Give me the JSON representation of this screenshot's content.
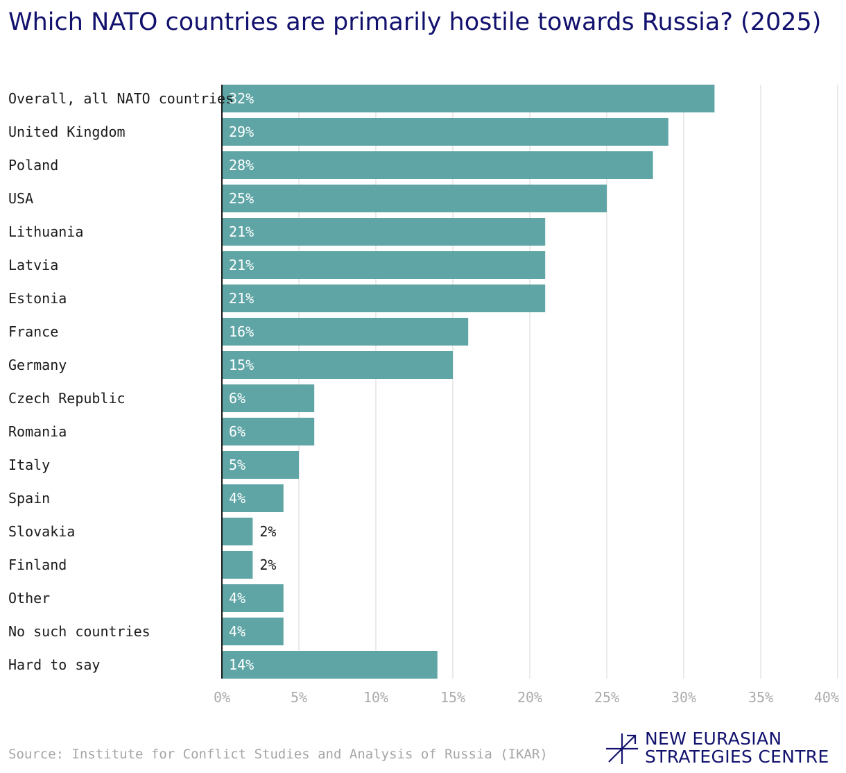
{
  "chart_data": {
    "type": "bar",
    "orientation": "horizontal",
    "title": "Which NATO countries are primarily hostile towards Russia? (2025)",
    "categories": [
      "Overall, all NATO countries",
      "United Kingdom",
      "Poland",
      "USA",
      "Lithuania",
      "Latvia",
      "Estonia",
      "France",
      "Germany",
      "Czech Republic",
      "Romania",
      "Italy",
      "Spain",
      "Slovakia",
      "Finland",
      "Other",
      "No such countries",
      "Hard to say"
    ],
    "values": [
      32,
      29,
      28,
      25,
      21,
      21,
      21,
      16,
      15,
      6,
      6,
      5,
      4,
      2,
      2,
      4,
      4,
      14
    ],
    "value_labels": [
      "32%",
      "29%",
      "28%",
      "25%",
      "21%",
      "21%",
      "21%",
      "16%",
      "15%",
      "6%",
      "6%",
      "5%",
      "4%",
      "2%",
      "2%",
      "4%",
      "4%",
      "14%"
    ],
    "xlim": [
      0,
      40
    ],
    "xticks": [
      0,
      5,
      10,
      15,
      20,
      25,
      30,
      35,
      40
    ],
    "xtick_labels": [
      "0%",
      "5%",
      "10%",
      "15%",
      "20%",
      "25%",
      "30%",
      "35%",
      "40%"
    ],
    "xlabel": "",
    "ylabel": "",
    "grid": true,
    "bar_color": "#5fa5a5"
  },
  "source": "Source: Institute for Conflict Studies and Analysis of Russia (IKAR)",
  "brand": {
    "line1": "NEW EURASIAN",
    "line2": "STRATEGIES CENTRE",
    "color": "#12126e"
  }
}
